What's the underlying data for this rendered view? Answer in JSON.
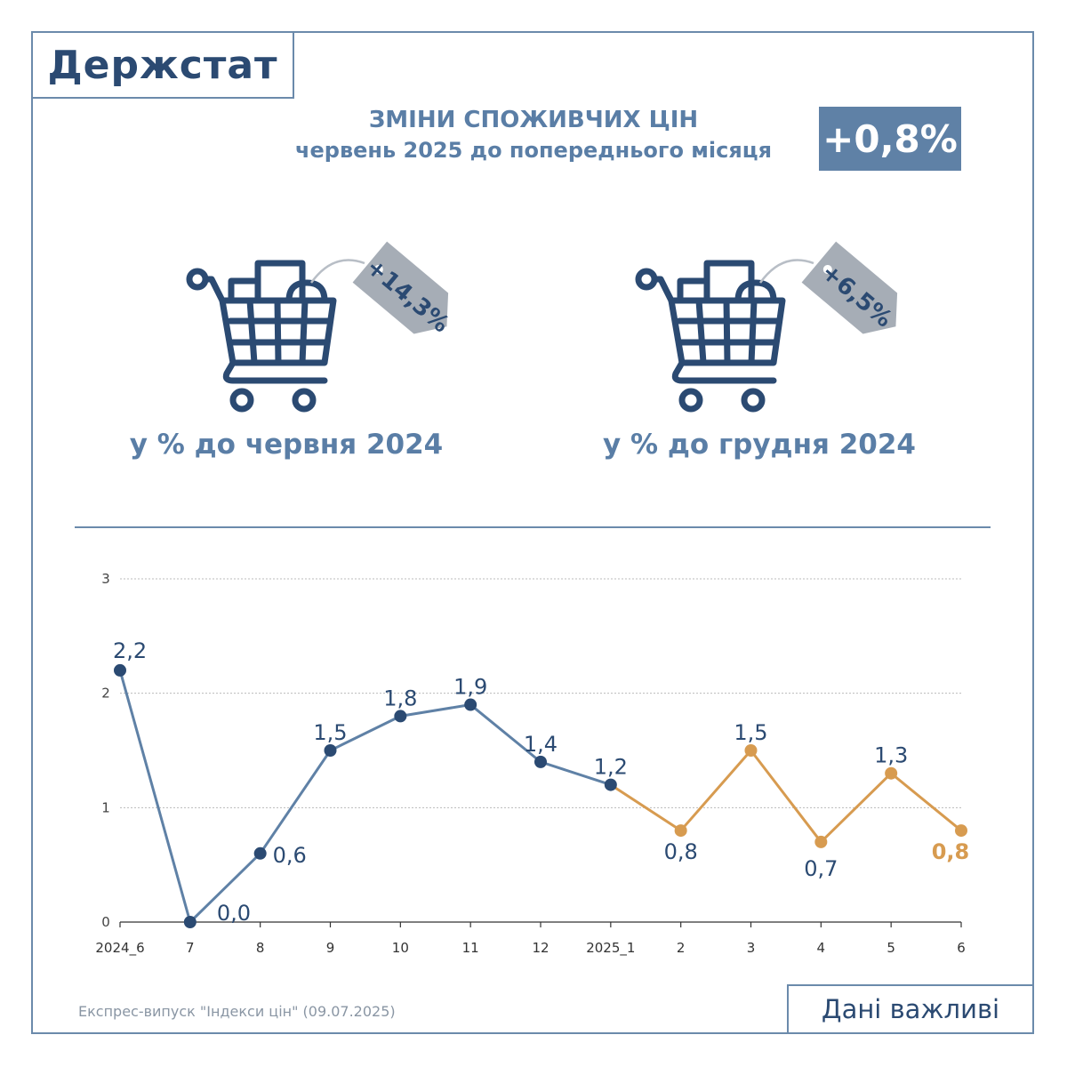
{
  "logo": "Держстат",
  "header": {
    "title_line1": "ЗМІНИ СПОЖИВЧИХ ЦІН",
    "title_line2": "червень 2025 до попереднього місяця",
    "badge": "+0,8%"
  },
  "carts": [
    {
      "tag": "+14,3%",
      "caption": "у % до червня 2024"
    },
    {
      "tag": "+6,5%",
      "caption": "у % до грудня 2024"
    }
  ],
  "colors": {
    "blue_series": "#5f81a6",
    "blue_point": "#2b4a72",
    "orange_series": "#d79b50",
    "tag_gray": "#a6adb6"
  },
  "chart_data": {
    "type": "line",
    "categories": [
      "2024_6",
      "7",
      "8",
      "9",
      "10",
      "11",
      "12",
      "2025_1",
      "2",
      "3",
      "4",
      "5",
      "6"
    ],
    "values": [
      2.2,
      0.0,
      0.6,
      1.5,
      1.8,
      1.9,
      1.4,
      1.2,
      0.8,
      1.5,
      0.7,
      1.3,
      0.8
    ],
    "data_labels": [
      "2,2",
      "0,0",
      "0,6",
      "1,5",
      "1,8",
      "1,9",
      "1,4",
      "1,2",
      "0,8",
      "1,5",
      "0,7",
      "1,3",
      "0,8"
    ],
    "ylim": [
      0,
      3
    ],
    "yticks": [
      "0",
      "1",
      "2",
      "3"
    ],
    "grid": true,
    "legend": "none",
    "segments": [
      {
        "from": 0,
        "to": 7,
        "color": "blue"
      },
      {
        "from": 7,
        "to": 12,
        "color": "orange"
      }
    ]
  },
  "footer": {
    "source": "Експрес-випуск \"Індекси цін\" (09.07.2025)",
    "tagline": "Дані важливі"
  }
}
